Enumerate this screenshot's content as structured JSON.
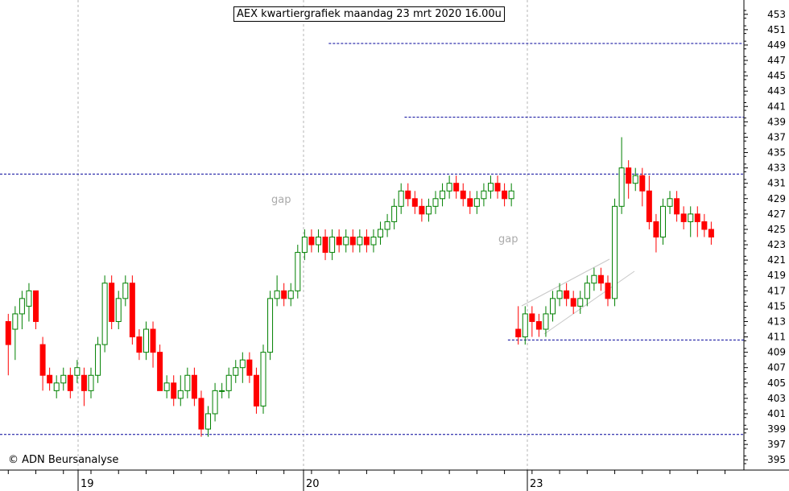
{
  "title": "AEX kwartiergrafiek maandag 23 mrt 2020 16.00u",
  "copyright": "© ADN Beursanalyse",
  "gap_labels": [
    "gap",
    "gap"
  ],
  "colors": {
    "up": "#008000",
    "down": "#ff0000",
    "guide": "#000099",
    "grid": "#b4b4b4"
  },
  "chart_data": {
    "type": "candlestick",
    "title": "AEX kwartiergrafiek maandag 23 mrt 2020 16.00u",
    "ylim": [
      394,
      454
    ],
    "y_ticks": [
      395,
      397,
      399,
      401,
      403,
      405,
      407,
      409,
      411,
      413,
      415,
      417,
      419,
      421,
      423,
      425,
      427,
      429,
      431,
      433,
      435,
      437,
      439,
      441,
      443,
      445,
      447,
      449,
      451,
      453
    ],
    "x_day_labels": [
      {
        "label": "19",
        "bar": 12
      },
      {
        "label": "20",
        "bar": 44
      },
      {
        "label": "23",
        "bar": 76
      }
    ],
    "grid": true,
    "horizontal_levels": [
      {
        "value": 449.2,
        "from_bar": 47,
        "to_bar": 107
      },
      {
        "value": 439.6,
        "from_bar": 58,
        "to_bar": 107
      },
      {
        "value": 432.2,
        "from_bar": 0,
        "to_bar": 107
      },
      {
        "value": 410.6,
        "from_bar": 73,
        "to_bar": 107
      },
      {
        "value": 398.3,
        "from_bar": 0,
        "to_bar": 107
      }
    ],
    "candles": [
      [
        413,
        410,
        414,
        406
      ],
      [
        412,
        414,
        415,
        408
      ],
      [
        414,
        416,
        417,
        412
      ],
      [
        415,
        417,
        418,
        413
      ],
      [
        417,
        413,
        417,
        412
      ],
      [
        410,
        406,
        411,
        404
      ],
      [
        406,
        405,
        407,
        404
      ],
      [
        404,
        405,
        406,
        403
      ],
      [
        405,
        406,
        407,
        404
      ],
      [
        406,
        404,
        407,
        403
      ],
      [
        406,
        407,
        408,
        405
      ],
      [
        406,
        404,
        407,
        402
      ],
      [
        404,
        406,
        407,
        403
      ],
      [
        406,
        410,
        411,
        405
      ],
      [
        410,
        418,
        419,
        409
      ],
      [
        418,
        413,
        419,
        412
      ],
      [
        413,
        416,
        417,
        412
      ],
      [
        416,
        418,
        419,
        415
      ],
      [
        418,
        411,
        419,
        410
      ],
      [
        411,
        409,
        412,
        408
      ],
      [
        409,
        412,
        413,
        408
      ],
      [
        412,
        409,
        413,
        407
      ],
      [
        409,
        404,
        410,
        404
      ],
      [
        404,
        405,
        406,
        403
      ],
      [
        405,
        403,
        406,
        402
      ],
      [
        403,
        404,
        406,
        402
      ],
      [
        404,
        406,
        407,
        403
      ],
      [
        406,
        403,
        407,
        402
      ],
      [
        403,
        399,
        404,
        398
      ],
      [
        399,
        401,
        402,
        398
      ],
      [
        401,
        404,
        405,
        400
      ],
      [
        404,
        404,
        405,
        403
      ],
      [
        404,
        406,
        407,
        403
      ],
      [
        406,
        407,
        408,
        405
      ],
      [
        407,
        408,
        409,
        405
      ],
      [
        408,
        406,
        409,
        405
      ],
      [
        406,
        402,
        407,
        401
      ],
      [
        402,
        409,
        410,
        401
      ],
      [
        409,
        416,
        417,
        408
      ],
      [
        416,
        417,
        419,
        415
      ],
      [
        417,
        416,
        418,
        415
      ],
      [
        416,
        417,
        418,
        415
      ],
      [
        417,
        422,
        423,
        416
      ],
      [
        422,
        424,
        425,
        421
      ],
      [
        424,
        423,
        425,
        422
      ],
      [
        423,
        424,
        425,
        422
      ],
      [
        424,
        422,
        425,
        421
      ],
      [
        422,
        424,
        425,
        421
      ],
      [
        424,
        423,
        425,
        422
      ],
      [
        423,
        424,
        425,
        422
      ],
      [
        424,
        423,
        425,
        422
      ],
      [
        423,
        424,
        425,
        422
      ],
      [
        424,
        423,
        425,
        422
      ],
      [
        423,
        424,
        425,
        422
      ],
      [
        424,
        425,
        426,
        423
      ],
      [
        425,
        426,
        427,
        424
      ],
      [
        426,
        428,
        429,
        425
      ],
      [
        428,
        430,
        431,
        427
      ],
      [
        430,
        429,
        431,
        428
      ],
      [
        429,
        428,
        430,
        427
      ],
      [
        428,
        427,
        429,
        426
      ],
      [
        427,
        428,
        429,
        426
      ],
      [
        428,
        429,
        430,
        427
      ],
      [
        429,
        430,
        431,
        428
      ],
      [
        430,
        431,
        432,
        429
      ],
      [
        431,
        430,
        432,
        429
      ],
      [
        430,
        429,
        431,
        428
      ],
      [
        429,
        428,
        430,
        427
      ],
      [
        428,
        429,
        430,
        427
      ],
      [
        429,
        430,
        431,
        428
      ],
      [
        430,
        431,
        432,
        429
      ],
      [
        431,
        430,
        432,
        429
      ],
      [
        430,
        429,
        431,
        428
      ],
      [
        429,
        430,
        431,
        428
      ],
      [
        412,
        411,
        415,
        410
      ],
      [
        411,
        414,
        415,
        410
      ],
      [
        414,
        413,
        415,
        411
      ],
      [
        413,
        412,
        414,
        411
      ],
      [
        412,
        414,
        415,
        411
      ],
      [
        414,
        416,
        417,
        413
      ],
      [
        416,
        417,
        418,
        415
      ],
      [
        417,
        416,
        418,
        415
      ],
      [
        416,
        415,
        417,
        414
      ],
      [
        415,
        416,
        417,
        414
      ],
      [
        416,
        418,
        419,
        415
      ],
      [
        418,
        419,
        420,
        417
      ],
      [
        419,
        418,
        420,
        417
      ],
      [
        418,
        416,
        419,
        415
      ],
      [
        416,
        428,
        429,
        415
      ],
      [
        428,
        433,
        437,
        427
      ],
      [
        433,
        431,
        434,
        429
      ],
      [
        431,
        432,
        433,
        430
      ],
      [
        432,
        430,
        433,
        428
      ],
      [
        430,
        426,
        432,
        425
      ],
      [
        426,
        424,
        427,
        422
      ],
      [
        424,
        428,
        429,
        423
      ],
      [
        428,
        429,
        430,
        427
      ],
      [
        429,
        427,
        430,
        426
      ],
      [
        427,
        426,
        428,
        425
      ],
      [
        426,
        427,
        428,
        424
      ],
      [
        427,
        426,
        428,
        424
      ],
      [
        426,
        425,
        427,
        424
      ],
      [
        425,
        424,
        426,
        423
      ]
    ]
  }
}
